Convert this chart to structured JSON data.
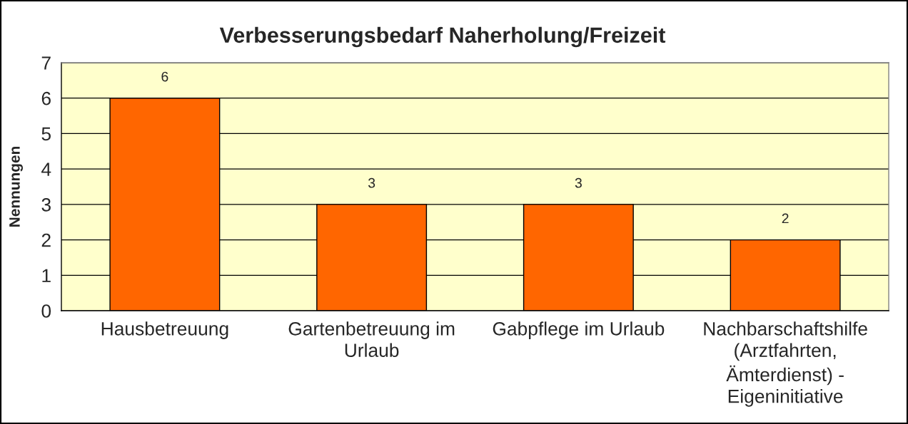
{
  "chart_data": {
    "type": "bar",
    "title": "Verbesserungsbedarf Naherholung/Freizeit",
    "ylabel": "Nennungen",
    "categories": [
      "Hausbetreuung",
      "Gartenbetreuung im\nUrlaub",
      "Gabpflege im Urlaub",
      "Nachbarschaftshilfe\n(Arztfahrten,\nÄmterdienst) -\nEigeninitiative"
    ],
    "values": [
      6,
      3,
      3,
      2
    ],
    "color": "#ff6600",
    "ylim": [
      0,
      7
    ],
    "yticks": [
      0,
      1,
      2,
      3,
      4,
      5,
      6,
      7
    ],
    "grid": "y",
    "data_labels": true
  }
}
